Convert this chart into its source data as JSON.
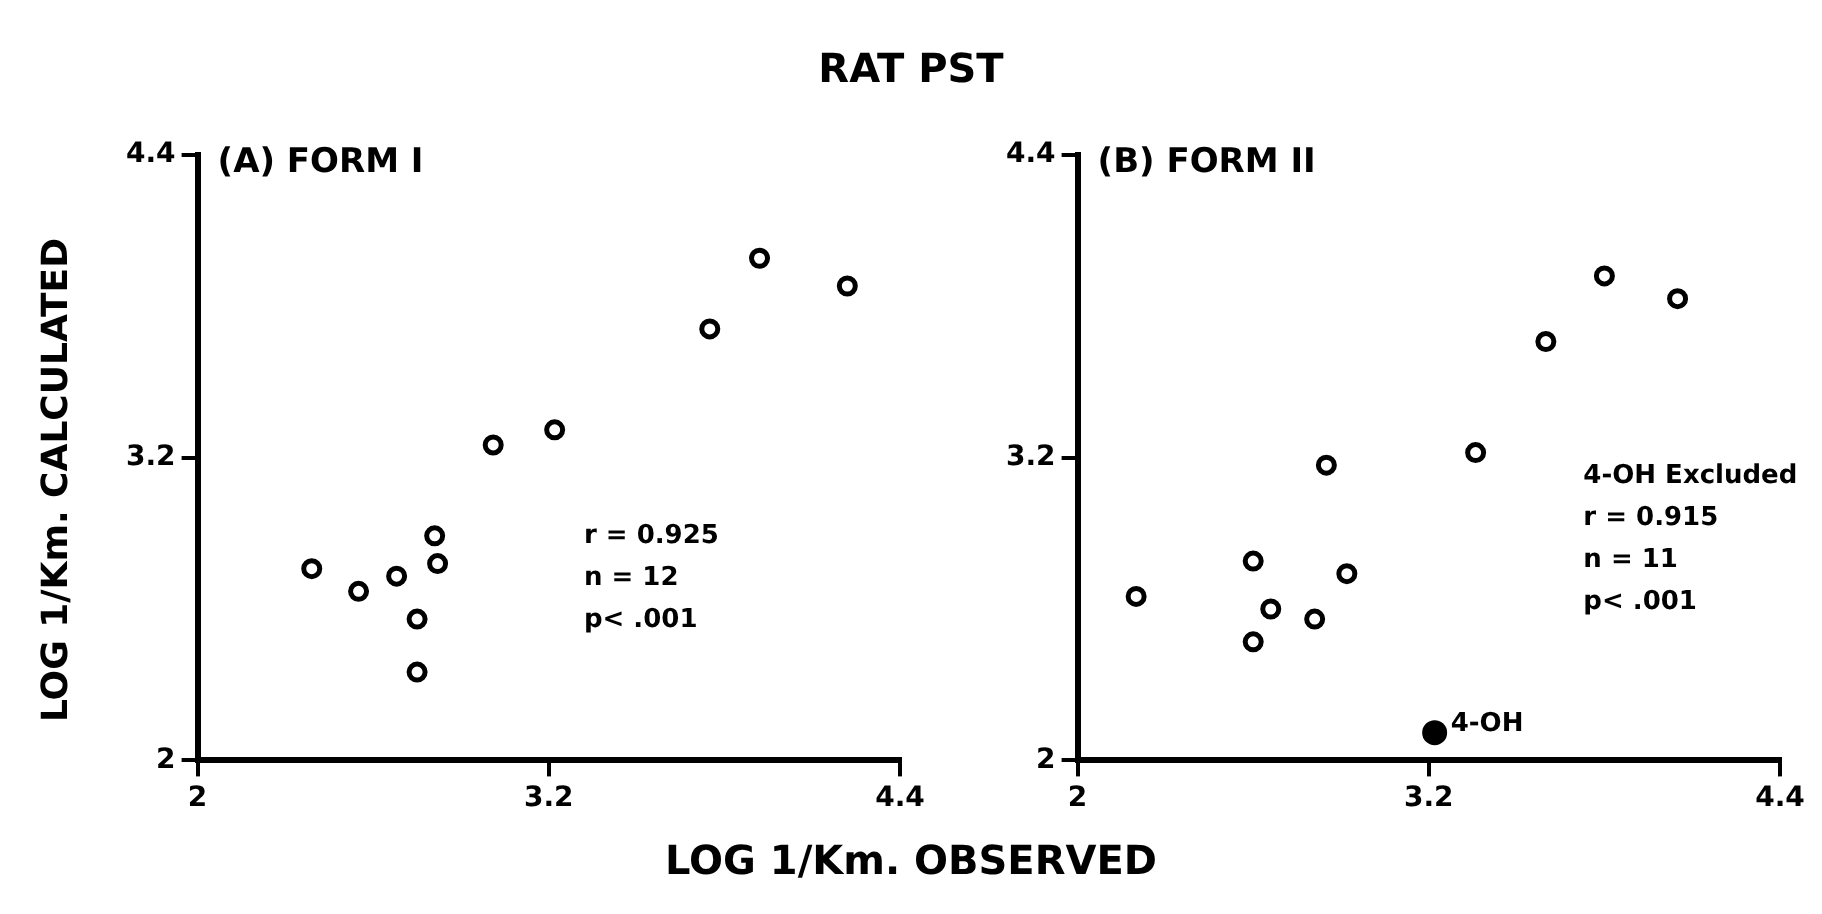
{
  "chart_data": [
    {
      "type": "scatter",
      "title": "RAT PST",
      "subtitle": "(A) FORM I",
      "xlabel": "LOG 1/Km. OBSERVED",
      "ylabel": "LOG 1/Km. CALCULATED",
      "xlim": [
        2,
        4.4
      ],
      "ylim": [
        2,
        4.4
      ],
      "xticks": [
        2,
        3.2,
        4.4
      ],
      "yticks": [
        2,
        3.2,
        4.4
      ],
      "grid": false,
      "legend": false,
      "marker": "circle",
      "series": [
        {
          "color": "#000000",
          "x": [
            2.39,
            2.55,
            2.68,
            2.81,
            2.82,
            2.75,
            2.75,
            3.01,
            3.22,
            3.75,
            3.92,
            4.22
          ],
          "values": [
            2.76,
            2.67,
            2.73,
            2.89,
            2.78,
            2.56,
            2.35,
            3.25,
            3.31,
            3.71,
            3.99,
            3.88
          ]
        }
      ],
      "annotations": [
        "r = 0.925",
        "n = 12",
        "p< .001"
      ]
    },
    {
      "type": "scatter",
      "subtitle": "(B) FORM II",
      "xlim": [
        2,
        4.4
      ],
      "ylim": [
        2,
        4.4
      ],
      "xticks": [
        2,
        3.2,
        4.4
      ],
      "yticks": [
        2,
        3.2,
        4.4
      ],
      "grid": false,
      "legend": false,
      "marker": "circle",
      "series": [
        {
          "color": "#000000",
          "x": [
            2.2,
            2.6,
            2.66,
            2.6,
            2.81,
            2.85,
            2.92,
            3.36,
            3.6,
            3.8,
            4.05
          ],
          "values": [
            2.65,
            2.79,
            2.6,
            2.47,
            2.56,
            3.17,
            2.74,
            3.22,
            3.66,
            3.92,
            3.83
          ]
        },
        {
          "color": "#000000",
          "x": [
            3.22
          ],
          "values": [
            2.11
          ]
        }
      ],
      "annotations": [
        "4-OH Excluded",
        "r = 0.915",
        "n = 11",
        "p< .001",
        {
          "text": "4-OH",
          "x": 3.22,
          "y": 2.11
        }
      ]
    }
  ]
}
